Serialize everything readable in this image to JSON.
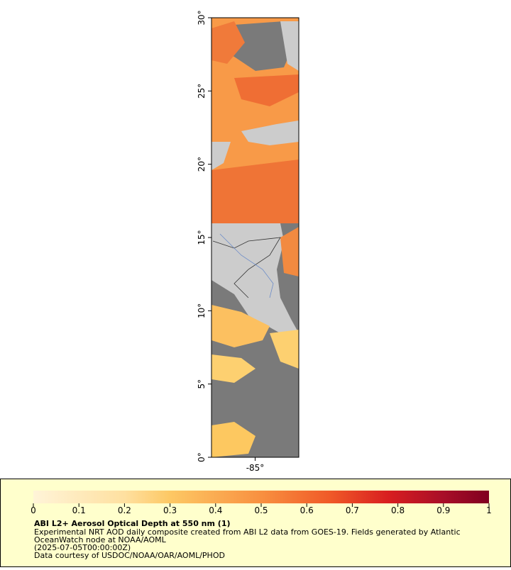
{
  "map": {
    "lat_range": [
      0,
      30
    ],
    "lon_range": [
      -88,
      -82
    ],
    "lat_ticks": [
      {
        "value": 0,
        "label": "0°"
      },
      {
        "value": 5,
        "label": "5°"
      },
      {
        "value": 10,
        "label": "10°"
      },
      {
        "value": 15,
        "label": "15°"
      },
      {
        "value": 20,
        "label": "20°"
      },
      {
        "value": 25,
        "label": "25°"
      },
      {
        "value": 30,
        "label": "30°"
      }
    ],
    "lon_ticks": [
      {
        "value": -85,
        "label": "-85°"
      }
    ]
  },
  "colorbar": {
    "range": [
      0,
      1
    ],
    "ticks": [
      0,
      0.1,
      0.2,
      0.3,
      0.4,
      0.5,
      0.6,
      0.7,
      0.8,
      0.9,
      1
    ]
  },
  "legend": {
    "title": "ABI L2+ Aerosol Optical Depth at 550 nm (1)",
    "lines": [
      "Experimental NRT AOD daily composite created from ABI L2 data from GOES-19. Fields generated by Atlantic",
      "OceanWatch node at NOAA/AOML",
      "(2025-07-05T00:00:00Z)",
      "Data courtesy of USDOC/NOAA/OAR/AOML/PHOD"
    ]
  }
}
